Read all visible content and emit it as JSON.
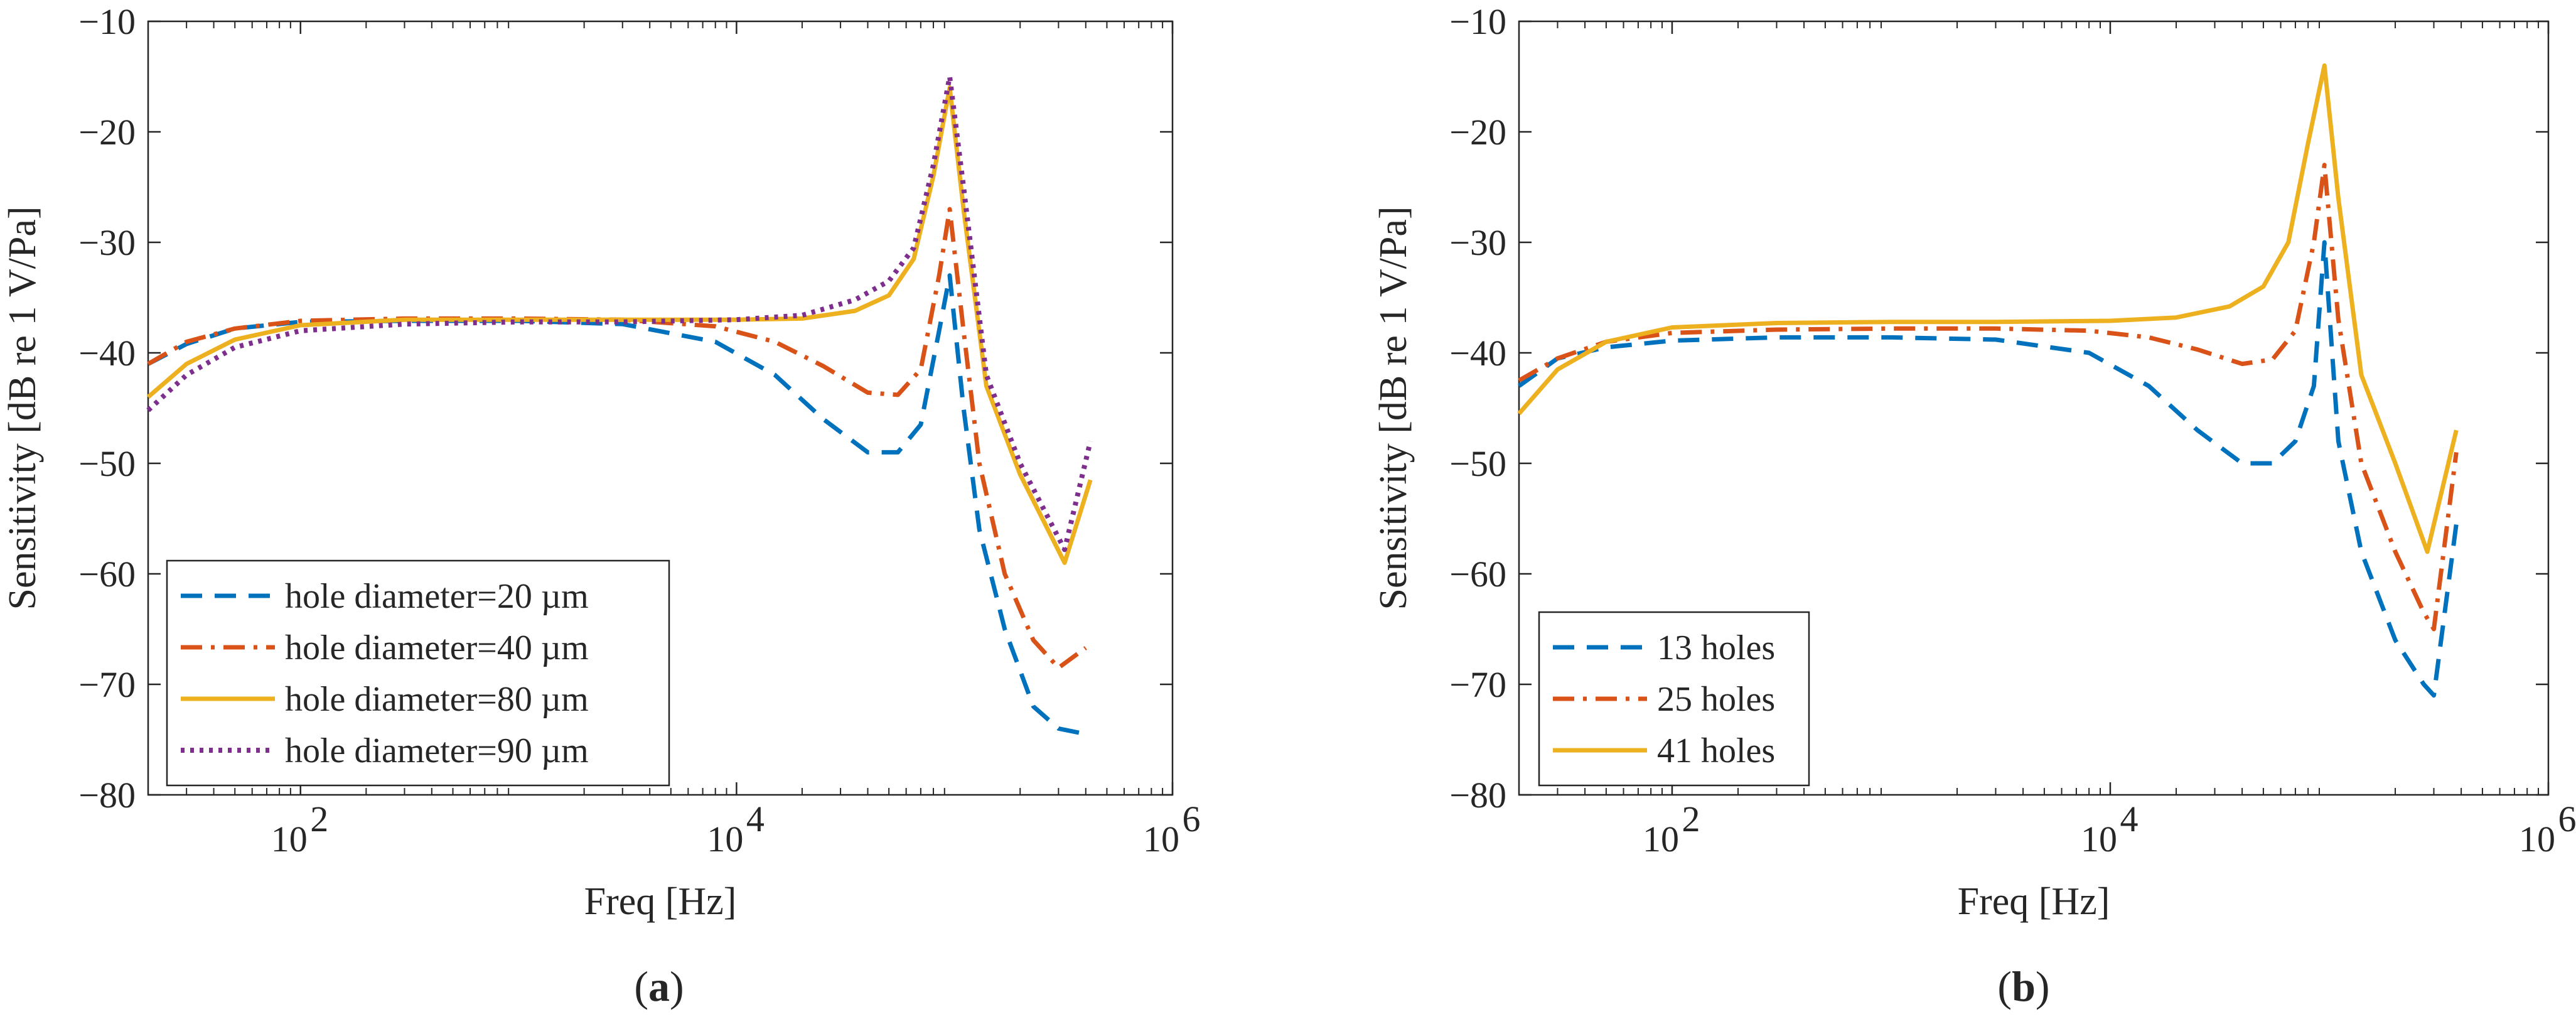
{
  "colors": {
    "axis": "#262626",
    "blue": "#0072BD",
    "orange": "#D95319",
    "yellow": "#EDB120",
    "purple": "#7E2F8E"
  },
  "chart_data": [
    {
      "panel": "(a)",
      "panel_letter": "a",
      "type": "line",
      "xscale": "log",
      "xlabel": "Freq [Hz]",
      "ylabel": "Sensitivity [dB re 1 V/Pa]",
      "xlim": [
        20,
        1000000
      ],
      "ylim": [
        -80,
        -10
      ],
      "xticks": [
        {
          "value": 100,
          "base": "10",
          "exp": "2"
        },
        {
          "value": 10000,
          "base": "10",
          "exp": "4"
        },
        {
          "value": 1000000,
          "base": "10",
          "exp": "6"
        }
      ],
      "yticks": [
        -10,
        -20,
        -30,
        -40,
        -50,
        -60,
        -70,
        -80
      ],
      "ytick_labels": [
        "−10",
        "−20",
        "−30",
        "−40",
        "−50",
        "−60",
        "−70",
        "−80"
      ],
      "legend_position": "bottom-left",
      "series": [
        {
          "name": "hole diameter=20 µm",
          "color": "#0072BD",
          "dash": "dashed",
          "x": [
            20,
            30,
            50,
            100,
            300,
            1000,
            3000,
            8000,
            15000,
            25000,
            40000,
            55000,
            70000,
            85000,
            95000,
            110000,
            130000,
            170000,
            230000,
            300000,
            400000
          ],
          "y": [
            -41,
            -39.2,
            -37.8,
            -37.2,
            -37.1,
            -37.1,
            -37.4,
            -39,
            -42,
            -46,
            -49,
            -49,
            -46.5,
            -38,
            -33,
            -45,
            -56,
            -65,
            -72,
            -74,
            -74.5
          ]
        },
        {
          "name": "hole diameter=40 µm",
          "color": "#D95319",
          "dash": "dashdot",
          "x": [
            20,
            30,
            50,
            100,
            300,
            1000,
            3000,
            8000,
            15000,
            25000,
            40000,
            55000,
            70000,
            85000,
            95000,
            110000,
            130000,
            170000,
            230000,
            300000,
            400000
          ],
          "y": [
            -41,
            -39,
            -37.8,
            -37.1,
            -36.9,
            -36.9,
            -37,
            -37.6,
            -39,
            -41.2,
            -43.6,
            -43.8,
            -41.5,
            -33,
            -27,
            -38,
            -50,
            -60,
            -66,
            -68.5,
            -66.7
          ]
        },
        {
          "name": "hole diameter=80 µm",
          "color": "#EDB120",
          "dash": "solid",
          "x": [
            20,
            30,
            50,
            100,
            300,
            1000,
            3000,
            10000,
            20000,
            35000,
            50000,
            65000,
            80000,
            95000,
            110000,
            140000,
            200000,
            320000,
            420000
          ],
          "y": [
            -44,
            -41,
            -38.8,
            -37.5,
            -37,
            -37,
            -37,
            -37,
            -36.9,
            -36.2,
            -34.8,
            -31.5,
            -24,
            -16,
            -27,
            -43,
            -51,
            -59,
            -51.5
          ]
        },
        {
          "name": "hole diameter=90 µm",
          "color": "#7E2F8E",
          "dash": "dotted",
          "x": [
            20,
            30,
            50,
            100,
            300,
            1000,
            3000,
            10000,
            20000,
            35000,
            50000,
            65000,
            80000,
            95000,
            110000,
            140000,
            200000,
            320000,
            420000
          ],
          "y": [
            -45.2,
            -42,
            -39.5,
            -38,
            -37.4,
            -37.2,
            -37.2,
            -37,
            -36.6,
            -35.2,
            -33.5,
            -30.5,
            -23,
            -15,
            -25,
            -42,
            -50,
            -57.8,
            -48
          ]
        }
      ]
    },
    {
      "panel": "(b)",
      "panel_letter": "b",
      "type": "line",
      "xscale": "log",
      "xlabel": "Freq [Hz]",
      "ylabel": "Sensitivity [dB re 1 V/Pa]",
      "xlim": [
        20,
        1000000
      ],
      "ylim": [
        -80,
        -10
      ],
      "xticks": [
        {
          "value": 100,
          "base": "10",
          "exp": "2"
        },
        {
          "value": 10000,
          "base": "10",
          "exp": "4"
        },
        {
          "value": 1000000,
          "base": "10",
          "exp": "6"
        }
      ],
      "yticks": [
        -10,
        -20,
        -30,
        -40,
        -50,
        -60,
        -70,
        -80
      ],
      "ytick_labels": [
        "−10",
        "−20",
        "−30",
        "−40",
        "−50",
        "−60",
        "−70",
        "−80"
      ],
      "legend_position": "bottom-left",
      "series": [
        {
          "name": "13 holes",
          "color": "#0072BD",
          "dash": "dashed",
          "x": [
            20,
            30,
            50,
            100,
            300,
            1000,
            3000,
            8000,
            15000,
            25000,
            40000,
            55000,
            70000,
            85000,
            95000,
            110000,
            140000,
            200000,
            270000,
            300000,
            380000
          ],
          "y": [
            -43,
            -40.5,
            -39.5,
            -38.9,
            -38.6,
            -38.6,
            -38.8,
            -40,
            -43,
            -47,
            -50,
            -50,
            -48,
            -43,
            -30,
            -48,
            -58,
            -66,
            -70,
            -71,
            -55.5
          ]
        },
        {
          "name": "25 holes",
          "color": "#D95319",
          "dash": "dashdot",
          "x": [
            20,
            30,
            50,
            100,
            300,
            1000,
            3000,
            8000,
            15000,
            25000,
            40000,
            55000,
            70000,
            85000,
            95000,
            110000,
            140000,
            200000,
            270000,
            300000,
            380000
          ],
          "y": [
            -42.5,
            -40.5,
            -39,
            -38.2,
            -37.9,
            -37.8,
            -37.8,
            -38,
            -38.6,
            -39.7,
            -41,
            -40.6,
            -38,
            -30,
            -23,
            -37,
            -50,
            -58,
            -63.5,
            -65,
            -49
          ]
        },
        {
          "name": "41 holes",
          "color": "#EDB120",
          "dash": "solid",
          "x": [
            20,
            30,
            50,
            100,
            300,
            1000,
            3000,
            10000,
            20000,
            35000,
            50000,
            65000,
            80000,
            95000,
            110000,
            140000,
            200000,
            280000,
            380000
          ],
          "y": [
            -45.5,
            -41.5,
            -39,
            -37.7,
            -37.3,
            -37.2,
            -37.2,
            -37.1,
            -36.8,
            -35.8,
            -34,
            -30,
            -21,
            -14,
            -26,
            -42,
            -50,
            -58,
            -47
          ]
        }
      ]
    }
  ]
}
